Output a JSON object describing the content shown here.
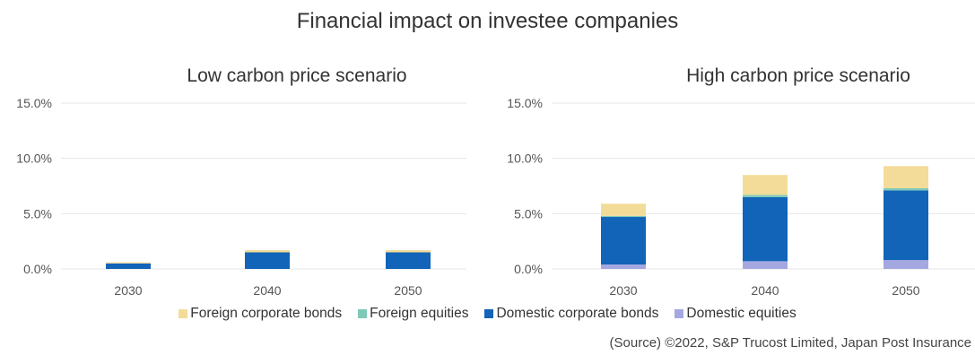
{
  "title": "Financial impact on investee companies",
  "colors": {
    "foreign_corporate_bonds": "#f3dc99",
    "foreign_equities": "#7fc9b7",
    "domestic_corporate_bonds": "#1164b8",
    "domestic_equities": "#a5a8e0",
    "grid": "#e6e6e6"
  },
  "chart_data": [
    {
      "type": "bar",
      "stacked": true,
      "title": "Low carbon price scenario",
      "categories": [
        "2030",
        "2040",
        "2050"
      ],
      "ylim": [
        0,
        15
      ],
      "yticks": [
        "0.0%",
        "5.0%",
        "10.0%",
        "15.0%"
      ],
      "ytick_values": [
        0,
        5,
        10,
        15
      ],
      "grid": true,
      "series": [
        {
          "name": "Domestic equities",
          "color_key": "domestic_equities",
          "values": [
            0.0,
            0.0,
            0.0
          ]
        },
        {
          "name": "Domestic corporate bonds",
          "color_key": "domestic_corporate_bonds",
          "values": [
            0.5,
            1.5,
            1.5
          ]
        },
        {
          "name": "Foreign equities",
          "color_key": "foreign_equities",
          "values": [
            0.0,
            0.0,
            0.0
          ]
        },
        {
          "name": "Foreign corporate bonds",
          "color_key": "foreign_corporate_bonds",
          "values": [
            0.1,
            0.2,
            0.2
          ]
        }
      ]
    },
    {
      "type": "bar",
      "stacked": true,
      "title": "High carbon price scenario",
      "categories": [
        "2030",
        "2040",
        "2050"
      ],
      "ylim": [
        0,
        15
      ],
      "yticks": [
        "0.0%",
        "5.0%",
        "10.0%",
        "15.0%"
      ],
      "ytick_values": [
        0,
        5,
        10,
        15
      ],
      "grid": true,
      "series": [
        {
          "name": "Domestic equities",
          "color_key": "domestic_equities",
          "values": [
            0.4,
            0.7,
            0.8
          ]
        },
        {
          "name": "Domestic corporate bonds",
          "color_key": "domestic_corporate_bonds",
          "values": [
            4.3,
            5.8,
            6.3
          ]
        },
        {
          "name": "Foreign equities",
          "color_key": "foreign_equities",
          "values": [
            0.1,
            0.2,
            0.2
          ]
        },
        {
          "name": "Foreign corporate bonds",
          "color_key": "foreign_corporate_bonds",
          "values": [
            1.1,
            1.8,
            2.0
          ]
        }
      ]
    }
  ],
  "legend": [
    {
      "label": "Foreign corporate bonds",
      "color_key": "foreign_corporate_bonds"
    },
    {
      "label": "Foreign equities",
      "color_key": "foreign_equities"
    },
    {
      "label": "Domestic corporate bonds",
      "color_key": "domestic_corporate_bonds"
    },
    {
      "label": "Domestic equities",
      "color_key": "domestic_equities"
    }
  ],
  "source": "(Source) ©2022, S&P Trucost Limited, Japan Post Insurance"
}
